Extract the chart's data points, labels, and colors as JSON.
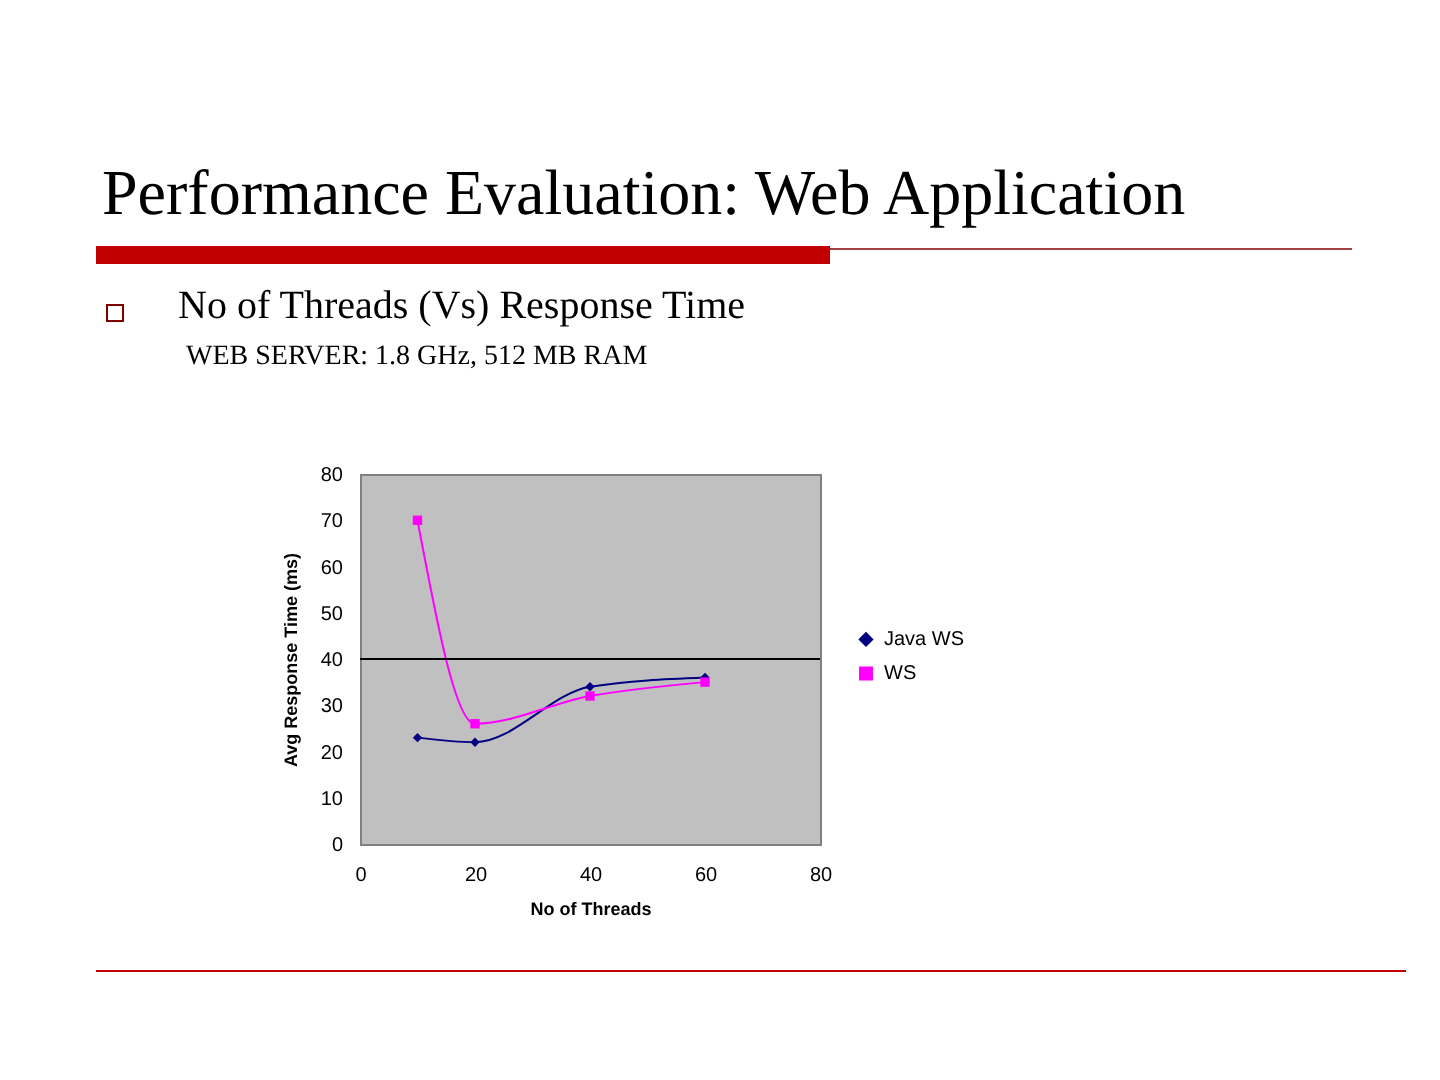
{
  "chart_data": {
    "type": "line",
    "title": "Performance Evaluation: Web Application",
    "subtitle": "No of Threads (Vs) Response Time",
    "annotations": [
      "WEB SERVER: 1.8 GHz, 512 MB RAM"
    ],
    "xlabel": "No of Threads",
    "ylabel": "Avg Response Time (ms)",
    "x": [
      10,
      20,
      40,
      60
    ],
    "series": [
      {
        "name": "Java WS",
        "color": "#000080",
        "marker": "diamond",
        "values": [
          23,
          22,
          34,
          36
        ]
      },
      {
        "name": "WS",
        "color": "#ff00ff",
        "marker": "square",
        "values": [
          70,
          26,
          32,
          35
        ]
      }
    ],
    "xlim": [
      0,
      80
    ],
    "xticks": [
      0,
      20,
      40,
      60,
      80
    ],
    "ylim": [
      0,
      80
    ],
    "yticks": [
      0,
      10,
      20,
      30,
      40,
      50,
      60,
      70,
      80
    ],
    "ref_lines": [
      {
        "axis": "y",
        "value": 40,
        "color": "#000000"
      }
    ],
    "grid": false,
    "legend": "right"
  }
}
